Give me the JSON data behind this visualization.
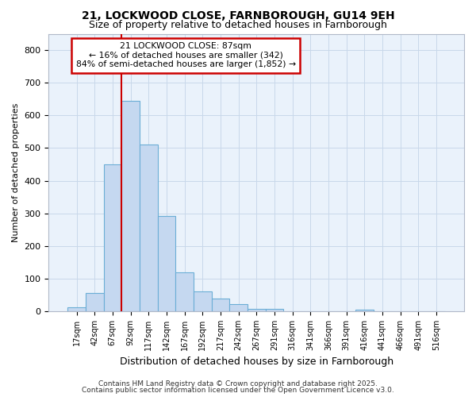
{
  "title_line1": "21, LOCKWOOD CLOSE, FARNBOROUGH, GU14 9EH",
  "title_line2": "Size of property relative to detached houses in Farnborough",
  "xlabel": "Distribution of detached houses by size in Farnborough",
  "ylabel": "Number of detached properties",
  "bin_labels": [
    "17sqm",
    "42sqm",
    "67sqm",
    "92sqm",
    "117sqm",
    "142sqm",
    "167sqm",
    "192sqm",
    "217sqm",
    "242sqm",
    "267sqm",
    "291sqm",
    "316sqm",
    "341sqm",
    "366sqm",
    "391sqm",
    "416sqm",
    "441sqm",
    "466sqm",
    "491sqm",
    "516sqm"
  ],
  "bar_heights": [
    12,
    57,
    450,
    645,
    510,
    292,
    120,
    62,
    38,
    22,
    8,
    8,
    0,
    0,
    0,
    0,
    5,
    0,
    0,
    0,
    0
  ],
  "bar_color": "#c5d8f0",
  "bar_edgecolor": "#6baed6",
  "bar_linewidth": 0.8,
  "grid_color": "#c8d8ea",
  "background_color": "#eaf2fb",
  "fig_background": "#ffffff",
  "annotation_text": "21 LOCKWOOD CLOSE: 87sqm\n← 16% of detached houses are smaller (342)\n84% of semi-detached houses are larger (1,852) →",
  "annotation_box_facecolor": "#ffffff",
  "annotation_box_edgecolor": "#cc0000",
  "red_line_color": "#cc0000",
  "ylim": [
    0,
    850
  ],
  "yticks": [
    0,
    100,
    200,
    300,
    400,
    500,
    600,
    700,
    800
  ],
  "red_line_bar_index": 2.5,
  "footer_line1": "Contains HM Land Registry data © Crown copyright and database right 2025.",
  "footer_line2": "Contains public sector information licensed under the Open Government Licence v3.0."
}
